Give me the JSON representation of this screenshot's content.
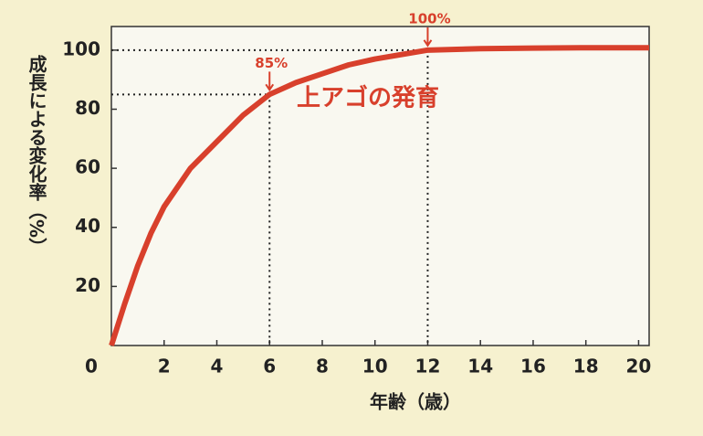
{
  "chart_data": {
    "type": "line",
    "x_label": "年齢（歳）",
    "y_label": "成長による変化率（%）",
    "x": [
      0,
      0.5,
      1,
      1.5,
      2,
      3,
      4,
      5,
      6,
      7,
      8,
      9,
      10,
      11,
      12,
      14,
      16,
      18,
      20.4
    ],
    "series": [
      {
        "name": "上アゴの発育",
        "color": "#d8402c",
        "values": [
          0,
          14,
          27,
          38,
          47,
          60,
          69,
          78,
          85,
          89,
          92,
          95,
          97,
          98.5,
          100,
          100.5,
          100.7,
          100.8,
          100.8
        ]
      }
    ],
    "annotations": [
      {
        "text": "85%",
        "x": 6,
        "y": 85
      },
      {
        "text": "100%",
        "x": 12,
        "y": 100
      }
    ],
    "xlim": [
      0,
      20.4
    ],
    "xticks": [
      0,
      2,
      4,
      6,
      8,
      10,
      12,
      14,
      16,
      18,
      20
    ],
    "ylim": [
      0,
      108
    ],
    "yticks": [
      20,
      40,
      60,
      80,
      100
    ]
  }
}
